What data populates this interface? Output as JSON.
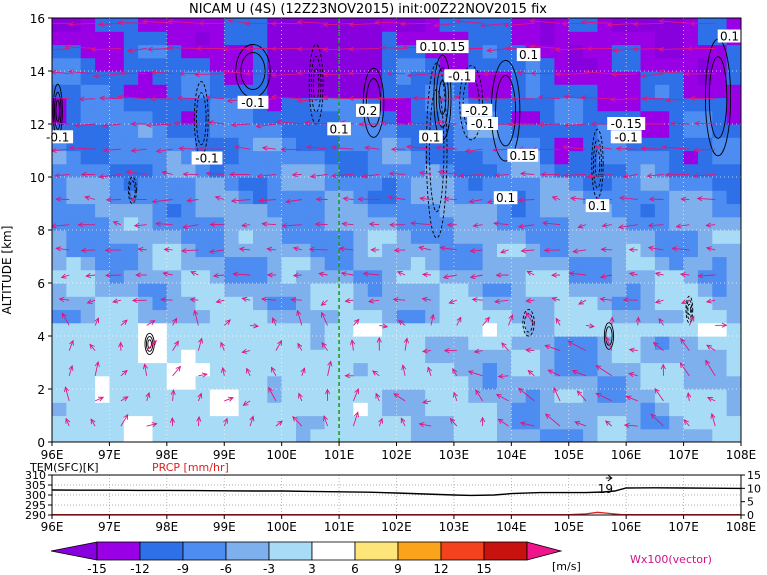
{
  "chart_data": [
    {
      "type": "heatmap",
      "title": "NICAM U (4S) (12Z23NOV2015) init:00Z22NOV2015 fix",
      "ylabel": "ALTITUDE [km]",
      "x_ticks": [
        "96E",
        "97E",
        "98E",
        "99E",
        "100E",
        "101E",
        "102E",
        "103E",
        "104E",
        "105E",
        "106E",
        "107E",
        "108E"
      ],
      "x_range": [
        96,
        108
      ],
      "y_ticks": [
        0,
        2,
        4,
        6,
        8,
        10,
        12,
        14,
        16
      ],
      "y_range": [
        0,
        16
      ],
      "grid": true,
      "marker_line_lon": 101,
      "colorbar": {
        "levels": [
          "-15",
          "-12",
          "-9",
          "-6",
          "-3",
          "3",
          "6",
          "9",
          "12",
          "15"
        ],
        "unit": "[m/s]",
        "colors": [
          "#9a00e6",
          "#2e70e8",
          "#4d8cf0",
          "#7fb0ee",
          "#a8dcf6",
          "#ffffff",
          "#fde57a",
          "#fca31c",
          "#f4421e",
          "#c8120e"
        ],
        "neg_end_color": "#8800dd",
        "pos_end_color": "#f0158a"
      },
      "vector_label": "Wx100(vector)",
      "contour_labels": [
        {
          "text": "-0.1",
          "lon": 96.1,
          "alt": 11.5
        },
        {
          "text": "-0.1",
          "lon": 98.7,
          "alt": 10.7
        },
        {
          "text": "-0.1",
          "lon": 99.5,
          "alt": 12.8
        },
        {
          "text": "0.10.15",
          "lon": 102.8,
          "alt": 14.9
        },
        {
          "text": "-0.1",
          "lon": 103.1,
          "alt": 13.8
        },
        {
          "text": "0.1",
          "lon": 104.3,
          "alt": 14.6
        },
        {
          "text": "0.2",
          "lon": 101.5,
          "alt": 12.5
        },
        {
          "text": "0.1",
          "lon": 101.0,
          "alt": 11.8
        },
        {
          "text": "0.1",
          "lon": 102.6,
          "alt": 11.5
        },
        {
          "text": "-0.2",
          "lon": 103.4,
          "alt": 12.5
        },
        {
          "text": "-0.1",
          "lon": 103.5,
          "alt": 12.0
        },
        {
          "text": "0.15",
          "lon": 104.2,
          "alt": 10.8
        },
        {
          "text": "0.1",
          "lon": 103.9,
          "alt": 9.2
        },
        {
          "text": "-0.15",
          "lon": 106.0,
          "alt": 12.0
        },
        {
          "text": "-0.1",
          "lon": 106.0,
          "alt": 11.5
        },
        {
          "text": "0.1",
          "lon": 105.5,
          "alt": 8.9
        },
        {
          "text": "0.1",
          "lon": 107.8,
          "alt": 15.3
        }
      ]
    },
    {
      "type": "line",
      "x_ticks": [
        "96E",
        "97E",
        "98E",
        "99E",
        "100E",
        "101E",
        "102E",
        "103E",
        "104E",
        "105E",
        "106E",
        "107E",
        "108E"
      ],
      "x_range": [
        96,
        108
      ],
      "left_axis": {
        "label": "TEM(SFC)[K]",
        "ticks": [
          290,
          295,
          300,
          305,
          310
        ],
        "range": [
          290,
          310
        ]
      },
      "right_axis": {
        "label": "PRCP [mm/hr]",
        "ticks": [
          0,
          5,
          10,
          15
        ],
        "range": [
          0,
          15
        ]
      },
      "series": [
        {
          "name": "TEM(SFC)[K]",
          "color": "#000000",
          "x": [
            96,
            96.5,
            97,
            97.5,
            98,
            98.5,
            99,
            99.5,
            100,
            100.5,
            101,
            101.5,
            102,
            102.5,
            103,
            103.3,
            103.7,
            104,
            104.5,
            105,
            105.3,
            105.6,
            105.8,
            106,
            106.5,
            107,
            107.5,
            108
          ],
          "y": [
            302.5,
            302.4,
            302.4,
            302.3,
            302.3,
            302.2,
            302.1,
            302.0,
            302.0,
            301.8,
            301.6,
            301.4,
            301.0,
            300.5,
            300.0,
            299.8,
            300.0,
            300.7,
            301.2,
            301.2,
            301.2,
            301.5,
            302.0,
            303.5,
            303.6,
            303.5,
            303.4,
            303.3
          ]
        },
        {
          "name": "PRCP [mm/hr]",
          "color": "#e02020",
          "x": [
            96,
            105.0,
            105.3,
            105.5,
            105.7,
            105.9,
            106,
            108
          ],
          "y": [
            0.1,
            0.1,
            0.4,
            1.0,
            0.6,
            0.2,
            0.1,
            0.1
          ]
        }
      ],
      "annotations": [
        {
          "text": "19",
          "lon": 105.75
        }
      ]
    }
  ]
}
